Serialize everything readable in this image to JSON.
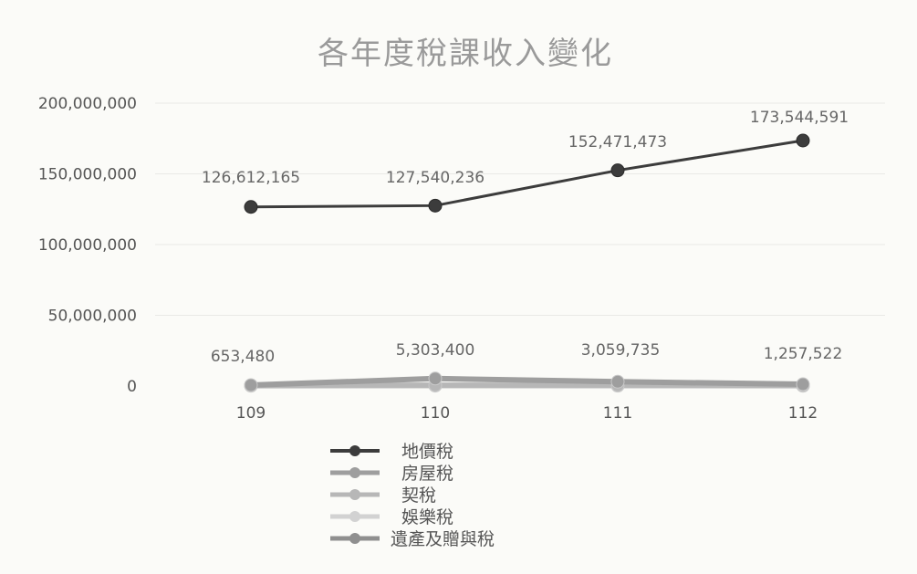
{
  "chart_data": {
    "type": "line",
    "title": "各年度稅課收入變化",
    "xlabel": "",
    "ylabel": "",
    "categories": [
      "109",
      "110",
      "111",
      "112"
    ],
    "ylim": [
      0,
      200000000
    ],
    "yticks": [
      0,
      50000000,
      100000000,
      150000000,
      200000000
    ],
    "ytick_labels": [
      "0",
      "50,000,000",
      "100,000,000",
      "150,000,000",
      "200,000,000"
    ],
    "grid": true,
    "legend_position": "bottom",
    "series": [
      {
        "name": "地價稅",
        "values": [
          126612165,
          127540236,
          152471473,
          173544591
        ],
        "color": "#3c3c3c",
        "labels": [
          "126,612,165",
          "127,540,236",
          "152,471,473",
          "173,544,591"
        ]
      },
      {
        "name": "房屋稅",
        "values": [
          653480,
          5303400,
          3059735,
          1257522
        ],
        "color": "#9e9e9e",
        "labels": [
          "653,480",
          "5,303,400",
          "3,059,735",
          "1,257,522"
        ]
      },
      {
        "name": "契稅",
        "values": [
          400000,
          600000,
          500000,
          450000
        ],
        "color": "#b7b7b7",
        "labels": []
      },
      {
        "name": "娛樂稅",
        "values": [
          200000,
          250000,
          220000,
          200000
        ],
        "color": "#d2d2d2",
        "labels": []
      },
      {
        "name": "遺產及贈與稅",
        "values": [
          300000,
          350000,
          320000,
          300000
        ],
        "color": "#8f8f8f",
        "labels": []
      }
    ]
  }
}
